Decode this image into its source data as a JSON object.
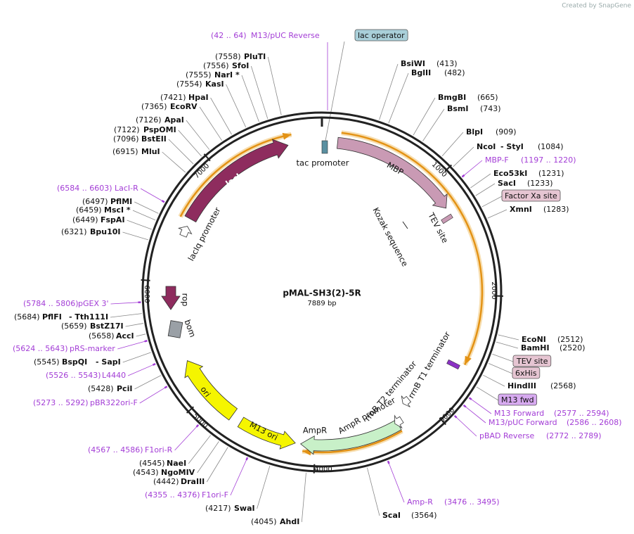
{
  "credit": "Created by SnapGene",
  "map": {
    "name": "pMAL-SH3(2)-5R",
    "length": "7889 bp",
    "ticks": [
      "1000",
      "2000",
      "3000",
      "4000",
      "5000",
      "6000",
      "7000"
    ],
    "sites": [
      {
        "name": "BsiWI",
        "pos": "(413)"
      },
      {
        "name": "BglII",
        "pos": "(482)"
      },
      {
        "name": "BmgBI",
        "pos": "(665)"
      },
      {
        "name": "BsmI",
        "pos": "(743)"
      },
      {
        "name": "BlpI",
        "pos": "(909)"
      },
      {
        "name": "NcoI",
        "name2": "- StyI",
        "pos": "(1084)"
      },
      {
        "name": "Eco53kI",
        "pos": "(1231)"
      },
      {
        "name": "SacI",
        "pos": "(1233)"
      },
      {
        "name": "XmnI",
        "pos": "(1283)"
      },
      {
        "name": "EcoNI",
        "pos": "(2512)"
      },
      {
        "name": "BamHI",
        "pos": "(2520)"
      },
      {
        "name": "HindIII",
        "pos": "(2568)"
      },
      {
        "name": "ScaI",
        "pos": "(3564)"
      },
      {
        "name": "AhdI",
        "pos": "(4045)"
      },
      {
        "name": "SwaI",
        "pos": "(4217)"
      },
      {
        "name": "DraIII",
        "pos": "(4442)"
      },
      {
        "name": "NgoMIV",
        "pos": "(4543)"
      },
      {
        "name": "NaeI",
        "pos": "(4545)"
      },
      {
        "name": "PciI",
        "pos": "(5428)"
      },
      {
        "name": "BspQI",
        "name2": "- SapI",
        "pos": "(5545)"
      },
      {
        "name": "AccI",
        "pos": "(5658)"
      },
      {
        "name": "BstZ17I",
        "pos": "(5659)"
      },
      {
        "name": "PflFI",
        "name2": "- Tth111I",
        "pos": "(5684)"
      },
      {
        "name": "Bpu10I",
        "pos": "(6321)"
      },
      {
        "name": "FspAI",
        "pos": "(6449)"
      },
      {
        "name": "MscI *",
        "pos": "(6459)"
      },
      {
        "name": "PflMI",
        "pos": "(6497)"
      },
      {
        "name": "MluI",
        "pos": "(6915)"
      },
      {
        "name": "BstEII",
        "pos": "(7096)"
      },
      {
        "name": "PspOMI",
        "pos": "(7122)"
      },
      {
        "name": "ApaI",
        "pos": "(7126)"
      },
      {
        "name": "EcoRV",
        "pos": "(7365)"
      },
      {
        "name": "HpaI",
        "pos": "(7421)"
      },
      {
        "name": "KasI",
        "pos": "(7554)"
      },
      {
        "name": "NarI *",
        "pos": "(7555)"
      },
      {
        "name": "SfoI",
        "pos": "(7556)"
      },
      {
        "name": "PluTI",
        "pos": "(7558)"
      }
    ],
    "primers": [
      {
        "name": "M13/pUC Reverse",
        "range": "(42 .. 64)"
      },
      {
        "name": "MBP-F",
        "range": "(1197 .. 1220)"
      },
      {
        "name": "M13 Forward",
        "range": "(2577 .. 2594)"
      },
      {
        "name": "M13/pUC Forward",
        "range": "(2586 .. 2608)"
      },
      {
        "name": "pBAD Reverse",
        "range": "(2772 .. 2789)"
      },
      {
        "name": "Amp-R",
        "range": "(3476 .. 3495)"
      },
      {
        "name": "F1ori-F",
        "range": "(4355 .. 4376)"
      },
      {
        "name": "F1ori-R",
        "range": "(4567 .. 4586)"
      },
      {
        "name": "pBR322ori-F",
        "range": "(5273 .. 5292)"
      },
      {
        "name": "L4440",
        "range": "(5526 .. 5543)"
      },
      {
        "name": "pRS-marker",
        "range": "(5624 .. 5643)"
      },
      {
        "name": "pGEX 3'",
        "range": "(5784 .. 5806)"
      },
      {
        "name": "LacI-R",
        "range": "(6584 .. 6603)"
      }
    ],
    "boxed_features": [
      "lac operator",
      "Factor Xa site",
      "TEV site",
      "6xHis",
      "M13 fwd"
    ],
    "features": [
      "tac promoter",
      "MBP",
      "lacI",
      "TEV site",
      "Kozak sequence",
      "lacIq promoter",
      "rop",
      "bom",
      "ori",
      "M13 ori",
      "AmpR",
      "AmpR promoter",
      "rrnB T2 terminator",
      "rrnB T1 terminator"
    ]
  }
}
